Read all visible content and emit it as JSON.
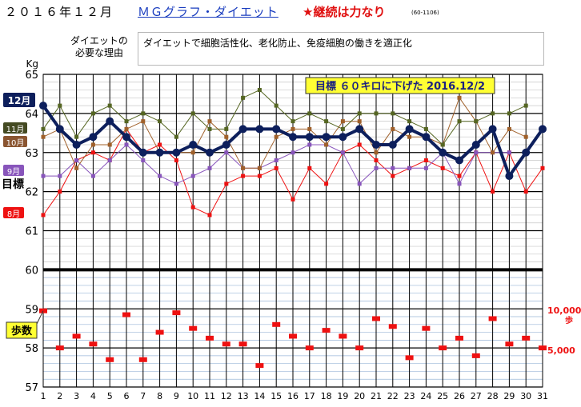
{
  "header": {
    "date": "２０１６年１２月",
    "app_title": "ＭＧグラフ・ダイエット",
    "slogan": "★継続は力なり",
    "code": "(60-1106)"
  },
  "reason": {
    "label_line1": "ダイエットの",
    "label_line2": "必要な理由",
    "text": "ダイエットで細胞活性化、老化防止、免疫細胞の働きを適正化"
  },
  "chart_data": {
    "type": "line",
    "x": [
      1,
      2,
      3,
      4,
      5,
      6,
      7,
      8,
      9,
      10,
      11,
      12,
      13,
      14,
      15,
      16,
      17,
      18,
      19,
      20,
      21,
      22,
      23,
      24,
      25,
      26,
      27,
      28,
      29,
      30,
      31
    ],
    "x_ticks": [
      "1",
      "2",
      "3",
      "4",
      "5",
      "6",
      "7",
      "8",
      "9",
      "10",
      "11",
      "12",
      "13",
      "14",
      "15",
      "16",
      "17",
      "18",
      "19",
      "20",
      "21",
      "22",
      "23",
      "24",
      "25",
      "26",
      "27",
      "28",
      "29",
      "30",
      "31"
    ],
    "y_unit": "Kg",
    "ylim": [
      57,
      65
    ],
    "y_ticks": [
      "57",
      "58",
      "59",
      "60",
      "61",
      "62",
      "63",
      "64",
      "65"
    ],
    "goal_line": 60,
    "goal_line_label": "目標",
    "goal_text": "目標 ６０キロに下げた 2016.12/2",
    "series": [
      {
        "name": "8月",
        "color": "#ee1111",
        "values": [
          61.4,
          62.0,
          62.8,
          63.0,
          62.8,
          63.6,
          63.0,
          63.2,
          62.8,
          61.6,
          61.4,
          62.2,
          62.4,
          62.4,
          62.6,
          61.8,
          62.6,
          62.2,
          63.0,
          63.2,
          62.8,
          62.4,
          62.6,
          62.8,
          62.6,
          62.4,
          63.0,
          62.0,
          63.0,
          62.0,
          62.6
        ]
      },
      {
        "name": "9月",
        "color": "#8855bb",
        "values": [
          62.4,
          62.4,
          62.8,
          62.4,
          62.8,
          63.2,
          62.8,
          62.4,
          62.2,
          62.4,
          62.6,
          63.0,
          62.6,
          62.6,
          62.8,
          63.0,
          63.2,
          63.2,
          63.0,
          62.2,
          62.6,
          62.6,
          62.6,
          62.6,
          63.0,
          62.2,
          63.0,
          63.0,
          63.0,
          null,
          null
        ]
      },
      {
        "name": "10月",
        "color": "#a0602a",
        "values": [
          63.4,
          63.6,
          62.6,
          63.2,
          63.2,
          63.6,
          63.8,
          63.0,
          63.0,
          63.0,
          63.8,
          63.4,
          62.6,
          62.6,
          63.4,
          63.6,
          63.6,
          63.2,
          63.8,
          63.8,
          63.0,
          63.6,
          63.4,
          63.4,
          63.2,
          64.4,
          63.8,
          63.0,
          63.6,
          63.4,
          null
        ]
      },
      {
        "name": "11月",
        "color": "#556622",
        "values": [
          63.6,
          64.2,
          63.4,
          64.0,
          64.2,
          63.8,
          64.0,
          63.8,
          63.4,
          64.0,
          63.6,
          63.6,
          64.4,
          64.6,
          64.2,
          63.8,
          64.0,
          63.8,
          63.6,
          64.0,
          64.0,
          64.0,
          63.8,
          63.6,
          63.2,
          63.8,
          63.8,
          64.0,
          64.0,
          64.2,
          null
        ]
      },
      {
        "name": "12月",
        "color": "#0d1f5c",
        "values": [
          64.2,
          63.6,
          63.2,
          63.4,
          63.8,
          63.4,
          63.0,
          63.0,
          63.0,
          63.2,
          63.0,
          63.2,
          63.6,
          63.6,
          63.6,
          63.4,
          63.4,
          63.4,
          63.4,
          63.6,
          63.2,
          63.2,
          63.6,
          63.4,
          63.0,
          62.8,
          63.2,
          63.6,
          62.4,
          63.0,
          63.6
        ]
      }
    ],
    "steps_label": "歩数",
    "steps_axis": [
      "10,000",
      "歩",
      "5,000"
    ],
    "steps_series": [
      58.95,
      58.0,
      58.3,
      58.1,
      57.7,
      58.85,
      57.7,
      58.4,
      58.9,
      58.5,
      58.25,
      58.1,
      58.1,
      57.55,
      58.6,
      58.3,
      58.0,
      58.45,
      58.3,
      58.0,
      58.75,
      58.55,
      57.75,
      58.5,
      58.0,
      58.25,
      57.8,
      58.75,
      58.1,
      58.25,
      58.0
    ]
  }
}
